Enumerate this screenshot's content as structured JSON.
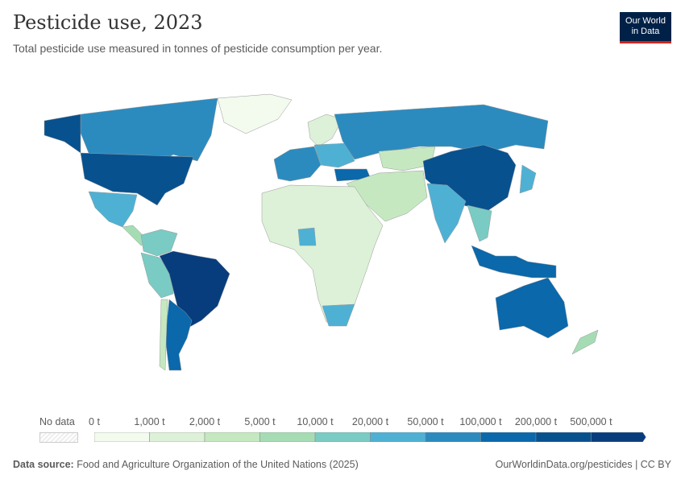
{
  "header": {
    "title": "Pesticide use, 2023",
    "subtitle": "Total pesticide use measured in tonnes of pesticide consumption per year.",
    "logo_line1": "Our World",
    "logo_line2": "in Data"
  },
  "legend": {
    "no_data_label": "No data",
    "ticks": [
      "0 t",
      "1,000 t",
      "2,000 t",
      "5,000 t",
      "10,000 t",
      "20,000 t",
      "50,000 t",
      "100,000 t",
      "200,000 t",
      "500,000 t"
    ],
    "bin_colors": [
      "#f3faee",
      "#dcf1d7",
      "#c5e8c0",
      "#a6dcb4",
      "#7acbc4",
      "#4eb1d4",
      "#2b8bbf",
      "#0a68ab",
      "#08518f",
      "#083d7d"
    ]
  },
  "regions": [
    {
      "name": "Greenland",
      "bin": 0
    },
    {
      "name": "Canada",
      "bin": 6
    },
    {
      "name": "United States",
      "bin": 8
    },
    {
      "name": "Mexico",
      "bin": 5
    },
    {
      "name": "Central America",
      "bin": 3
    },
    {
      "name": "Colombia-Venezuela",
      "bin": 4
    },
    {
      "name": "Peru-Bolivia",
      "bin": 4
    },
    {
      "name": "Brazil",
      "bin": 9
    },
    {
      "name": "Argentina",
      "bin": 7
    },
    {
      "name": "Chile",
      "bin": 2
    },
    {
      "name": "Western Europe",
      "bin": 6
    },
    {
      "name": "Scandinavia",
      "bin": 1
    },
    {
      "name": "Eastern Europe",
      "bin": 5
    },
    {
      "name": "Russia",
      "bin": 6
    },
    {
      "name": "Kazakhstan",
      "bin": 2
    },
    {
      "name": "Turkey",
      "bin": 7
    },
    {
      "name": "Middle East",
      "bin": 2
    },
    {
      "name": "China",
      "bin": 8
    },
    {
      "name": "India",
      "bin": 5
    },
    {
      "name": "Southeast Asia",
      "bin": 4
    },
    {
      "name": "Indonesia-Malaysia",
      "bin": 7
    },
    {
      "name": "Japan",
      "bin": 5
    },
    {
      "name": "Africa",
      "bin": 1
    },
    {
      "name": "Nigeria",
      "bin": 5
    },
    {
      "name": "South Africa",
      "bin": 5
    },
    {
      "name": "Australia",
      "bin": 7
    },
    {
      "name": "New Zealand",
      "bin": 3
    }
  ],
  "footer": {
    "source_label": "Data source:",
    "source": "Food and Agriculture Organization of the United Nations (2025)",
    "link": "OurWorldinData.org/pesticides | CC BY"
  }
}
